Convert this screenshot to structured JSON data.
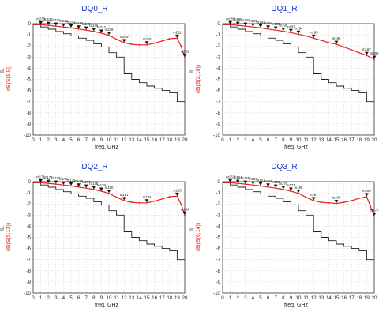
{
  "chart_data": [
    {
      "type": "line",
      "title": "DQ0_R",
      "ylabel_top": "IL",
      "ylabel": "dB(S(1,9))",
      "xlabel": "freq, GHz",
      "xlim": [
        0,
        20
      ],
      "ylim": [
        -10,
        0
      ],
      "xticks": [
        0,
        1,
        2,
        3,
        4,
        5,
        6,
        7,
        8,
        9,
        10,
        11,
        12,
        13,
        14,
        15,
        16,
        17,
        18,
        19,
        20
      ],
      "yticks": [
        0,
        -1,
        -2,
        -3,
        -4,
        -5,
        -6,
        -7,
        -8,
        -9,
        -10
      ],
      "series": [
        {
          "color": "#e8231f",
          "x": [
            0,
            1,
            2,
            3,
            4,
            5,
            6,
            7,
            8,
            9,
            10,
            11,
            12,
            13,
            14,
            15,
            16,
            17,
            18,
            19,
            19.5,
            20
          ],
          "y": [
            -0.05,
            -0.1,
            -0.15,
            -0.22,
            -0.3,
            -0.38,
            -0.48,
            -0.58,
            -0.7,
            -0.85,
            -1.05,
            -1.4,
            -1.7,
            -1.85,
            -1.9,
            -1.9,
            -1.75,
            -1.55,
            -1.35,
            -1.3,
            -2.0,
            -3.0
          ]
        },
        {
          "color": "#222222",
          "x": [
            0,
            1,
            1,
            2,
            2,
            3,
            3,
            4,
            4,
            5,
            5,
            6,
            6,
            7,
            7,
            8,
            8,
            9,
            9,
            10,
            10,
            11,
            11,
            12,
            12,
            13,
            13,
            14,
            14,
            15,
            15,
            16,
            16,
            17,
            17,
            18,
            18,
            19,
            19,
            20
          ],
          "y": [
            -0.1,
            -0.1,
            -0.3,
            -0.3,
            -0.5,
            -0.5,
            -0.7,
            -0.7,
            -0.9,
            -0.9,
            -1.1,
            -1.1,
            -1.3,
            -1.3,
            -1.5,
            -1.5,
            -1.8,
            -1.8,
            -2.1,
            -2.1,
            -2.6,
            -2.6,
            -3.0,
            -3.0,
            -4.5,
            -4.5,
            -5.0,
            -5.0,
            -5.3,
            -5.3,
            -5.6,
            -5.6,
            -5.8,
            -5.8,
            -6.0,
            -6.0,
            -6.2,
            -6.2,
            -7.0,
            -7.0
          ]
        }
      ],
      "markers": [
        {
          "x": 1,
          "y": -0.1,
          "label": "m239"
        },
        {
          "x": 2,
          "y": -0.15,
          "label": "m240"
        },
        {
          "x": 3,
          "y": -0.22,
          "label": "m241"
        },
        {
          "x": 4,
          "y": -0.3,
          "label": "m242"
        },
        {
          "x": 5,
          "y": -0.38,
          "label": "m243"
        },
        {
          "x": 6,
          "y": -0.48,
          "label": "m244"
        },
        {
          "x": 7,
          "y": -0.58,
          "label": "m245"
        },
        {
          "x": 8,
          "y": -0.7,
          "label": "m246"
        },
        {
          "x": 9,
          "y": -0.85,
          "label": "m247"
        },
        {
          "x": 10,
          "y": -1.05,
          "label": "m248"
        },
        {
          "x": 12,
          "y": -1.7,
          "label": "m249"
        },
        {
          "x": 15,
          "y": -1.9,
          "label": "m250"
        },
        {
          "x": 19,
          "y": -1.3,
          "label": "m251"
        },
        {
          "x": 20,
          "y": -3.0,
          "label": "m252"
        }
      ]
    },
    {
      "type": "line",
      "title": "DQ1_R",
      "ylabel_top": "IL",
      "ylabel": "dB(S(2,10))",
      "xlabel": "freq, GHz",
      "xlim": [
        0,
        20
      ],
      "ylim": [
        -10,
        0
      ],
      "xticks": [
        0,
        1,
        2,
        3,
        4,
        5,
        6,
        7,
        8,
        9,
        10,
        11,
        12,
        13,
        14,
        15,
        16,
        17,
        18,
        19,
        20
      ],
      "yticks": [
        0,
        -1,
        -2,
        -3,
        -4,
        -5,
        -6,
        -7,
        -8,
        -9,
        -10
      ],
      "series": [
        {
          "color": "#e8231f",
          "x": [
            0,
            1,
            2,
            3,
            4,
            5,
            6,
            7,
            8,
            9,
            10,
            11,
            12,
            13,
            14,
            15,
            16,
            17,
            18,
            19,
            20
          ],
          "y": [
            -0.05,
            -0.1,
            -0.15,
            -0.22,
            -0.3,
            -0.38,
            -0.48,
            -0.58,
            -0.68,
            -0.8,
            -0.95,
            -1.1,
            -1.3,
            -1.5,
            -1.7,
            -1.85,
            -2.1,
            -2.35,
            -2.6,
            -2.85,
            -3.2
          ]
        },
        {
          "color": "#222222",
          "x": [
            0,
            1,
            1,
            2,
            2,
            3,
            3,
            4,
            4,
            5,
            5,
            6,
            6,
            7,
            7,
            8,
            8,
            9,
            9,
            10,
            10,
            11,
            11,
            12,
            12,
            13,
            13,
            14,
            14,
            15,
            15,
            16,
            16,
            17,
            17,
            18,
            18,
            19,
            19,
            20
          ],
          "y": [
            -0.1,
            -0.1,
            -0.3,
            -0.3,
            -0.5,
            -0.5,
            -0.7,
            -0.7,
            -0.9,
            -0.9,
            -1.1,
            -1.1,
            -1.3,
            -1.3,
            -1.5,
            -1.5,
            -1.8,
            -1.8,
            -2.1,
            -2.1,
            -2.6,
            -2.6,
            -3.0,
            -3.0,
            -4.5,
            -4.5,
            -5.0,
            -5.0,
            -5.3,
            -5.3,
            -5.6,
            -5.6,
            -5.8,
            -5.8,
            -6.0,
            -6.0,
            -6.2,
            -6.2,
            -7.0,
            -7.0
          ]
        }
      ],
      "markers": [
        {
          "x": 1,
          "y": -0.1,
          "label": "m189"
        },
        {
          "x": 2,
          "y": -0.15,
          "label": "m190"
        },
        {
          "x": 3,
          "y": -0.22,
          "label": "m191"
        },
        {
          "x": 4,
          "y": -0.3,
          "label": "m192"
        },
        {
          "x": 5,
          "y": -0.38,
          "label": "m193"
        },
        {
          "x": 6,
          "y": -0.48,
          "label": "m194"
        },
        {
          "x": 7,
          "y": -0.58,
          "label": "m195"
        },
        {
          "x": 8,
          "y": -0.68,
          "label": "m196"
        },
        {
          "x": 9,
          "y": -0.8,
          "label": "m197"
        },
        {
          "x": 10,
          "y": -0.95,
          "label": "m194"
        },
        {
          "x": 12,
          "y": -1.3,
          "label": "m195"
        },
        {
          "x": 15,
          "y": -1.85,
          "label": "m196"
        },
        {
          "x": 19,
          "y": -2.85,
          "label": "m197"
        },
        {
          "x": 20,
          "y": -3.2,
          "label": "m198"
        }
      ]
    },
    {
      "type": "line",
      "title": "DQ2_R",
      "ylabel_top": "IL",
      "ylabel": "dB(S(5,13))",
      "xlabel": "freq, GHz",
      "xlim": [
        0,
        20
      ],
      "ylim": [
        -10,
        0
      ],
      "xticks": [
        0,
        1,
        2,
        3,
        4,
        5,
        6,
        7,
        8,
        9,
        10,
        11,
        12,
        13,
        14,
        15,
        16,
        17,
        18,
        19,
        20
      ],
      "yticks": [
        0,
        -1,
        -2,
        -3,
        -4,
        -5,
        -6,
        -7,
        -8,
        -9,
        -10
      ],
      "series": [
        {
          "color": "#e8231f",
          "x": [
            0,
            1,
            2,
            3,
            4,
            5,
            6,
            7,
            8,
            9,
            10,
            11,
            12,
            13,
            14,
            15,
            16,
            17,
            18,
            19,
            19.5,
            20
          ],
          "y": [
            -0.05,
            -0.1,
            -0.15,
            -0.22,
            -0.3,
            -0.38,
            -0.48,
            -0.58,
            -0.7,
            -0.85,
            -1.05,
            -1.4,
            -1.7,
            -1.85,
            -1.9,
            -1.9,
            -1.75,
            -1.55,
            -1.35,
            -1.3,
            -2.0,
            -3.0
          ]
        },
        {
          "color": "#222222",
          "x": [
            0,
            1,
            1,
            2,
            2,
            3,
            3,
            4,
            4,
            5,
            5,
            6,
            6,
            7,
            7,
            8,
            8,
            9,
            9,
            10,
            10,
            11,
            11,
            12,
            12,
            13,
            13,
            14,
            14,
            15,
            15,
            16,
            16,
            17,
            17,
            18,
            18,
            19,
            19,
            20
          ],
          "y": [
            -0.1,
            -0.1,
            -0.3,
            -0.3,
            -0.5,
            -0.5,
            -0.7,
            -0.7,
            -0.9,
            -0.9,
            -1.1,
            -1.1,
            -1.3,
            -1.3,
            -1.5,
            -1.5,
            -1.8,
            -1.8,
            -2.1,
            -2.1,
            -2.6,
            -2.6,
            -3.0,
            -3.0,
            -4.5,
            -4.5,
            -5.0,
            -5.0,
            -5.3,
            -5.3,
            -5.6,
            -5.6,
            -5.8,
            -5.8,
            -6.0,
            -6.0,
            -6.2,
            -6.2,
            -7.0,
            -7.0
          ]
        }
      ],
      "markers": [
        {
          "x": 1,
          "y": -0.1,
          "label": "m171"
        },
        {
          "x": 2,
          "y": -0.15,
          "label": "m172"
        },
        {
          "x": 3,
          "y": -0.22,
          "label": "m173"
        },
        {
          "x": 4,
          "y": -0.3,
          "label": "m174"
        },
        {
          "x": 5,
          "y": -0.38,
          "label": "m175"
        },
        {
          "x": 6,
          "y": -0.48,
          "label": "m176"
        },
        {
          "x": 7,
          "y": -0.58,
          "label": "m177"
        },
        {
          "x": 8,
          "y": -0.7,
          "label": "m178"
        },
        {
          "x": 9,
          "y": -0.85,
          "label": "m179"
        },
        {
          "x": 10,
          "y": -1.05,
          "label": "m180"
        },
        {
          "x": 12,
          "y": -1.7,
          "label": "m181"
        },
        {
          "x": 15,
          "y": -1.9,
          "label": "m182"
        },
        {
          "x": 19,
          "y": -1.3,
          "label": "m183"
        },
        {
          "x": 20,
          "y": -3.0,
          "label": "m184"
        }
      ]
    },
    {
      "type": "line",
      "title": "DQ3_R",
      "ylabel_top": "IL",
      "ylabel": "dB(S(6,14))",
      "xlabel": "freq, GHz",
      "xlim": [
        0,
        20
      ],
      "ylim": [
        -10,
        0
      ],
      "xticks": [
        0,
        1,
        2,
        3,
        4,
        5,
        6,
        7,
        8,
        9,
        10,
        11,
        12,
        13,
        14,
        15,
        16,
        17,
        18,
        19,
        20
      ],
      "yticks": [
        0,
        -1,
        -2,
        -3,
        -4,
        -5,
        -6,
        -7,
        -8,
        -9,
        -10
      ],
      "series": [
        {
          "color": "#e8231f",
          "x": [
            0,
            1,
            2,
            3,
            4,
            5,
            6,
            7,
            8,
            9,
            10,
            11,
            12,
            13,
            14,
            15,
            16,
            17,
            18,
            19,
            19.5,
            20
          ],
          "y": [
            -0.05,
            -0.1,
            -0.15,
            -0.22,
            -0.3,
            -0.38,
            -0.48,
            -0.58,
            -0.7,
            -0.85,
            -1.05,
            -1.4,
            -1.7,
            -1.85,
            -1.9,
            -1.95,
            -1.85,
            -1.7,
            -1.5,
            -1.35,
            -2.2,
            -3.1
          ]
        },
        {
          "color": "#222222",
          "x": [
            0,
            1,
            1,
            2,
            2,
            3,
            3,
            4,
            4,
            5,
            5,
            6,
            6,
            7,
            7,
            8,
            8,
            9,
            9,
            10,
            10,
            11,
            11,
            12,
            12,
            13,
            13,
            14,
            14,
            15,
            15,
            16,
            16,
            17,
            17,
            18,
            18,
            19,
            19,
            20
          ],
          "y": [
            -0.1,
            -0.1,
            -0.3,
            -0.3,
            -0.5,
            -0.5,
            -0.7,
            -0.7,
            -0.9,
            -0.9,
            -1.1,
            -1.1,
            -1.3,
            -1.3,
            -1.5,
            -1.5,
            -1.8,
            -1.8,
            -2.1,
            -2.1,
            -2.6,
            -2.6,
            -3.0,
            -3.0,
            -4.5,
            -4.5,
            -5.0,
            -5.0,
            -5.3,
            -5.3,
            -5.6,
            -5.6,
            -5.8,
            -5.8,
            -6.0,
            -6.0,
            -6.2,
            -6.2,
            -7.0,
            -7.0
          ]
        }
      ],
      "markers": [
        {
          "x": 1,
          "y": -0.1,
          "label": "m163"
        },
        {
          "x": 2,
          "y": -0.15,
          "label": "m164"
        },
        {
          "x": 3,
          "y": -0.22,
          "label": "m165"
        },
        {
          "x": 4,
          "y": -0.3,
          "label": "m166"
        },
        {
          "x": 5,
          "y": -0.38,
          "label": "m167"
        },
        {
          "x": 6,
          "y": -0.48,
          "label": "m168"
        },
        {
          "x": 7,
          "y": -0.58,
          "label": "m169"
        },
        {
          "x": 8,
          "y": -0.7,
          "label": "m170"
        },
        {
          "x": 9,
          "y": -0.85,
          "label": "m171"
        },
        {
          "x": 10,
          "y": -1.05,
          "label": "m166"
        },
        {
          "x": 12,
          "y": -1.7,
          "label": "m167"
        },
        {
          "x": 15,
          "y": -1.95,
          "label": "m168"
        },
        {
          "x": 19,
          "y": -1.35,
          "label": "m169"
        },
        {
          "x": 20,
          "y": -3.1,
          "label": "m170"
        }
      ]
    }
  ]
}
